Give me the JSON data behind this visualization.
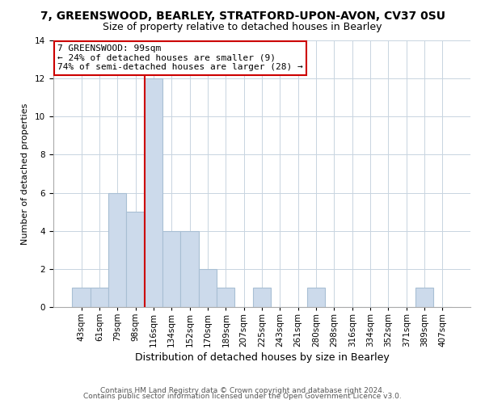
{
  "title": "7, GREENSWOOD, BEARLEY, STRATFORD-UPON-AVON, CV37 0SU",
  "subtitle": "Size of property relative to detached houses in Bearley",
  "xlabel": "Distribution of detached houses by size in Bearley",
  "ylabel": "Number of detached properties",
  "bin_labels": [
    "43sqm",
    "61sqm",
    "79sqm",
    "98sqm",
    "116sqm",
    "134sqm",
    "152sqm",
    "170sqm",
    "189sqm",
    "207sqm",
    "225sqm",
    "243sqm",
    "261sqm",
    "280sqm",
    "298sqm",
    "316sqm",
    "334sqm",
    "352sqm",
    "371sqm",
    "389sqm",
    "407sqm"
  ],
  "bar_values": [
    1,
    1,
    6,
    5,
    12,
    4,
    4,
    2,
    1,
    0,
    1,
    0,
    0,
    1,
    0,
    0,
    0,
    0,
    0,
    1,
    0
  ],
  "bar_color": "#ccdaeb",
  "bar_edge_color": "#a8bfd4",
  "marker_line_color": "#cc0000",
  "ylim": [
    0,
    14
  ],
  "yticks": [
    0,
    2,
    4,
    6,
    8,
    10,
    12,
    14
  ],
  "annotation_title": "7 GREENSWOOD: 99sqm",
  "annotation_line1": "← 24% of detached houses are smaller (9)",
  "annotation_line2": "74% of semi-detached houses are larger (28) →",
  "annotation_box_color": "#ffffff",
  "annotation_box_edge": "#cc0000",
  "footer1": "Contains HM Land Registry data © Crown copyright and database right 2024.",
  "footer2": "Contains public sector information licensed under the Open Government Licence v3.0.",
  "grid_color": "#c8d4e0",
  "background_color": "#ffffff",
  "title_fontsize": 10,
  "subtitle_fontsize": 9,
  "xlabel_fontsize": 9,
  "ylabel_fontsize": 8,
  "tick_fontsize": 7.5,
  "annot_fontsize": 8,
  "footer_fontsize": 6.5
}
